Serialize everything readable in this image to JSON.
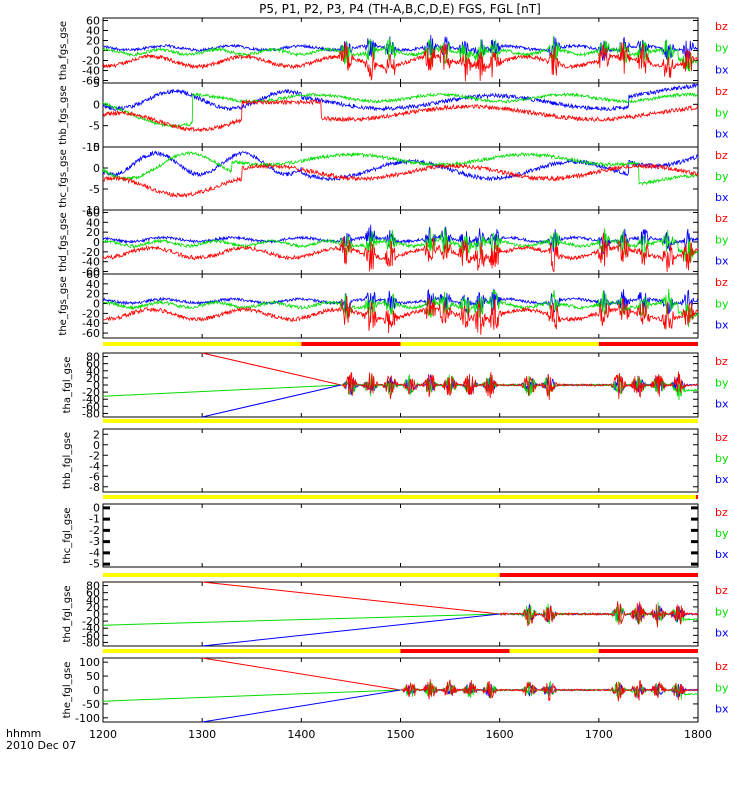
{
  "title": "P5, P1, P2, P3, P4 (TH-A,B,C,D,E) FGS, FGL [nT]",
  "colors": {
    "bx": "#0000ff",
    "by": "#00dd00",
    "bz": "#ff0000",
    "bar_yellow": "#ffff00",
    "bar_red": "#ff0000"
  },
  "legend": [
    "bz",
    "by",
    "bx"
  ],
  "x_axis": {
    "label_line1": "hhmm",
    "label_line2": "2010 Dec 07",
    "ticks": [
      "1200",
      "1300",
      "1400",
      "1500",
      "1600",
      "1700",
      "1800"
    ],
    "range": [
      1200,
      1800
    ]
  },
  "chart_data": [
    {
      "type": "line",
      "ylabel": "tha_fgs_gse",
      "ylim": [
        -65,
        65
      ],
      "yticks": [
        -60,
        -40,
        -20,
        0,
        20,
        40,
        60
      ],
      "series": [
        {
          "name": "bz"
        },
        {
          "name": "by"
        },
        {
          "name": "bx"
        }
      ]
    },
    {
      "type": "line",
      "ylabel": "thb_fgs_gse",
      "ylim": [
        -10,
        5
      ],
      "yticks": [
        -10,
        -5,
        0,
        5
      ],
      "series": [
        {
          "name": "bz"
        },
        {
          "name": "by"
        },
        {
          "name": "bx"
        }
      ]
    },
    {
      "type": "line",
      "ylabel": "thc_fgs_gse",
      "ylim": [
        -10,
        5
      ],
      "yticks": [
        -10,
        -5,
        0,
        5
      ],
      "series": [
        {
          "name": "bz"
        },
        {
          "name": "by"
        },
        {
          "name": "bx"
        }
      ]
    },
    {
      "type": "line",
      "ylabel": "thd_fgs_gse",
      "ylim": [
        -65,
        65
      ],
      "yticks": [
        -60,
        -40,
        -20,
        0,
        20,
        40,
        60
      ],
      "series": [
        {
          "name": "bz"
        },
        {
          "name": "by"
        },
        {
          "name": "bx"
        }
      ]
    },
    {
      "type": "line",
      "ylabel": "the_fgs_gse",
      "ylim": [
        -70,
        60
      ],
      "yticks": [
        -60,
        -40,
        -20,
        0,
        20,
        40,
        60
      ],
      "series": [
        {
          "name": "bz"
        },
        {
          "name": "by"
        },
        {
          "name": "bx"
        }
      ]
    },
    {
      "type": "line",
      "ylabel": "tha_fgl_gse",
      "ylim": [
        -90,
        90
      ],
      "yticks": [
        -80,
        -60,
        -40,
        -20,
        0,
        20,
        40,
        60,
        80
      ],
      "series": [
        {
          "name": "bz"
        },
        {
          "name": "by"
        },
        {
          "name": "bx"
        }
      ]
    },
    {
      "type": "line",
      "ylabel": "thb_fgl_gse",
      "ylim": [
        -9,
        3
      ],
      "yticks": [
        -8,
        -6,
        -4,
        -2,
        0,
        2
      ],
      "series": [
        {
          "name": "bz"
        },
        {
          "name": "by"
        },
        {
          "name": "bx"
        }
      ]
    },
    {
      "type": "line",
      "ylabel": "thc_fgl_gse",
      "ylim": [
        -5.3,
        0.3
      ],
      "yticks": [
        -5,
        -4,
        -3,
        -2,
        -1,
        0
      ],
      "series": [
        {
          "name": "bz"
        },
        {
          "name": "by"
        },
        {
          "name": "bx"
        }
      ]
    },
    {
      "type": "line",
      "ylabel": "thd_fgl_gse",
      "ylim": [
        -90,
        90
      ],
      "yticks": [
        -80,
        -60,
        -40,
        -20,
        0,
        20,
        40,
        60,
        80
      ],
      "series": [
        {
          "name": "bz"
        },
        {
          "name": "by"
        },
        {
          "name": "bx"
        }
      ]
    },
    {
      "type": "line",
      "ylabel": "the_fgl_gse",
      "ylim": [
        -115,
        115
      ],
      "yticks": [
        -100,
        -50,
        0,
        50,
        100
      ],
      "series": [
        {
          "name": "bz"
        },
        {
          "name": "by"
        },
        {
          "name": "bx"
        }
      ]
    }
  ],
  "mode_bars": [
    {
      "segments": [
        [
          1200,
          1400,
          "yellow"
        ],
        [
          1400,
          1500,
          "red"
        ],
        [
          1500,
          1700,
          "yellow"
        ],
        [
          1700,
          1800,
          "red"
        ]
      ]
    },
    {
      "segments": [
        [
          1200,
          1800,
          "yellow"
        ]
      ]
    },
    {
      "segments": [
        [
          1200,
          1798,
          "yellow"
        ],
        [
          1798,
          1800,
          "red"
        ]
      ]
    },
    {
      "segments": [
        [
          1200,
          1600,
          "yellow"
        ],
        [
          1600,
          1800,
          "red"
        ]
      ]
    },
    {
      "segments": [
        [
          1200,
          1500,
          "yellow"
        ],
        [
          1500,
          1610,
          "red"
        ],
        [
          1610,
          1700,
          "yellow"
        ],
        [
          1700,
          1800,
          "red"
        ]
      ]
    }
  ]
}
